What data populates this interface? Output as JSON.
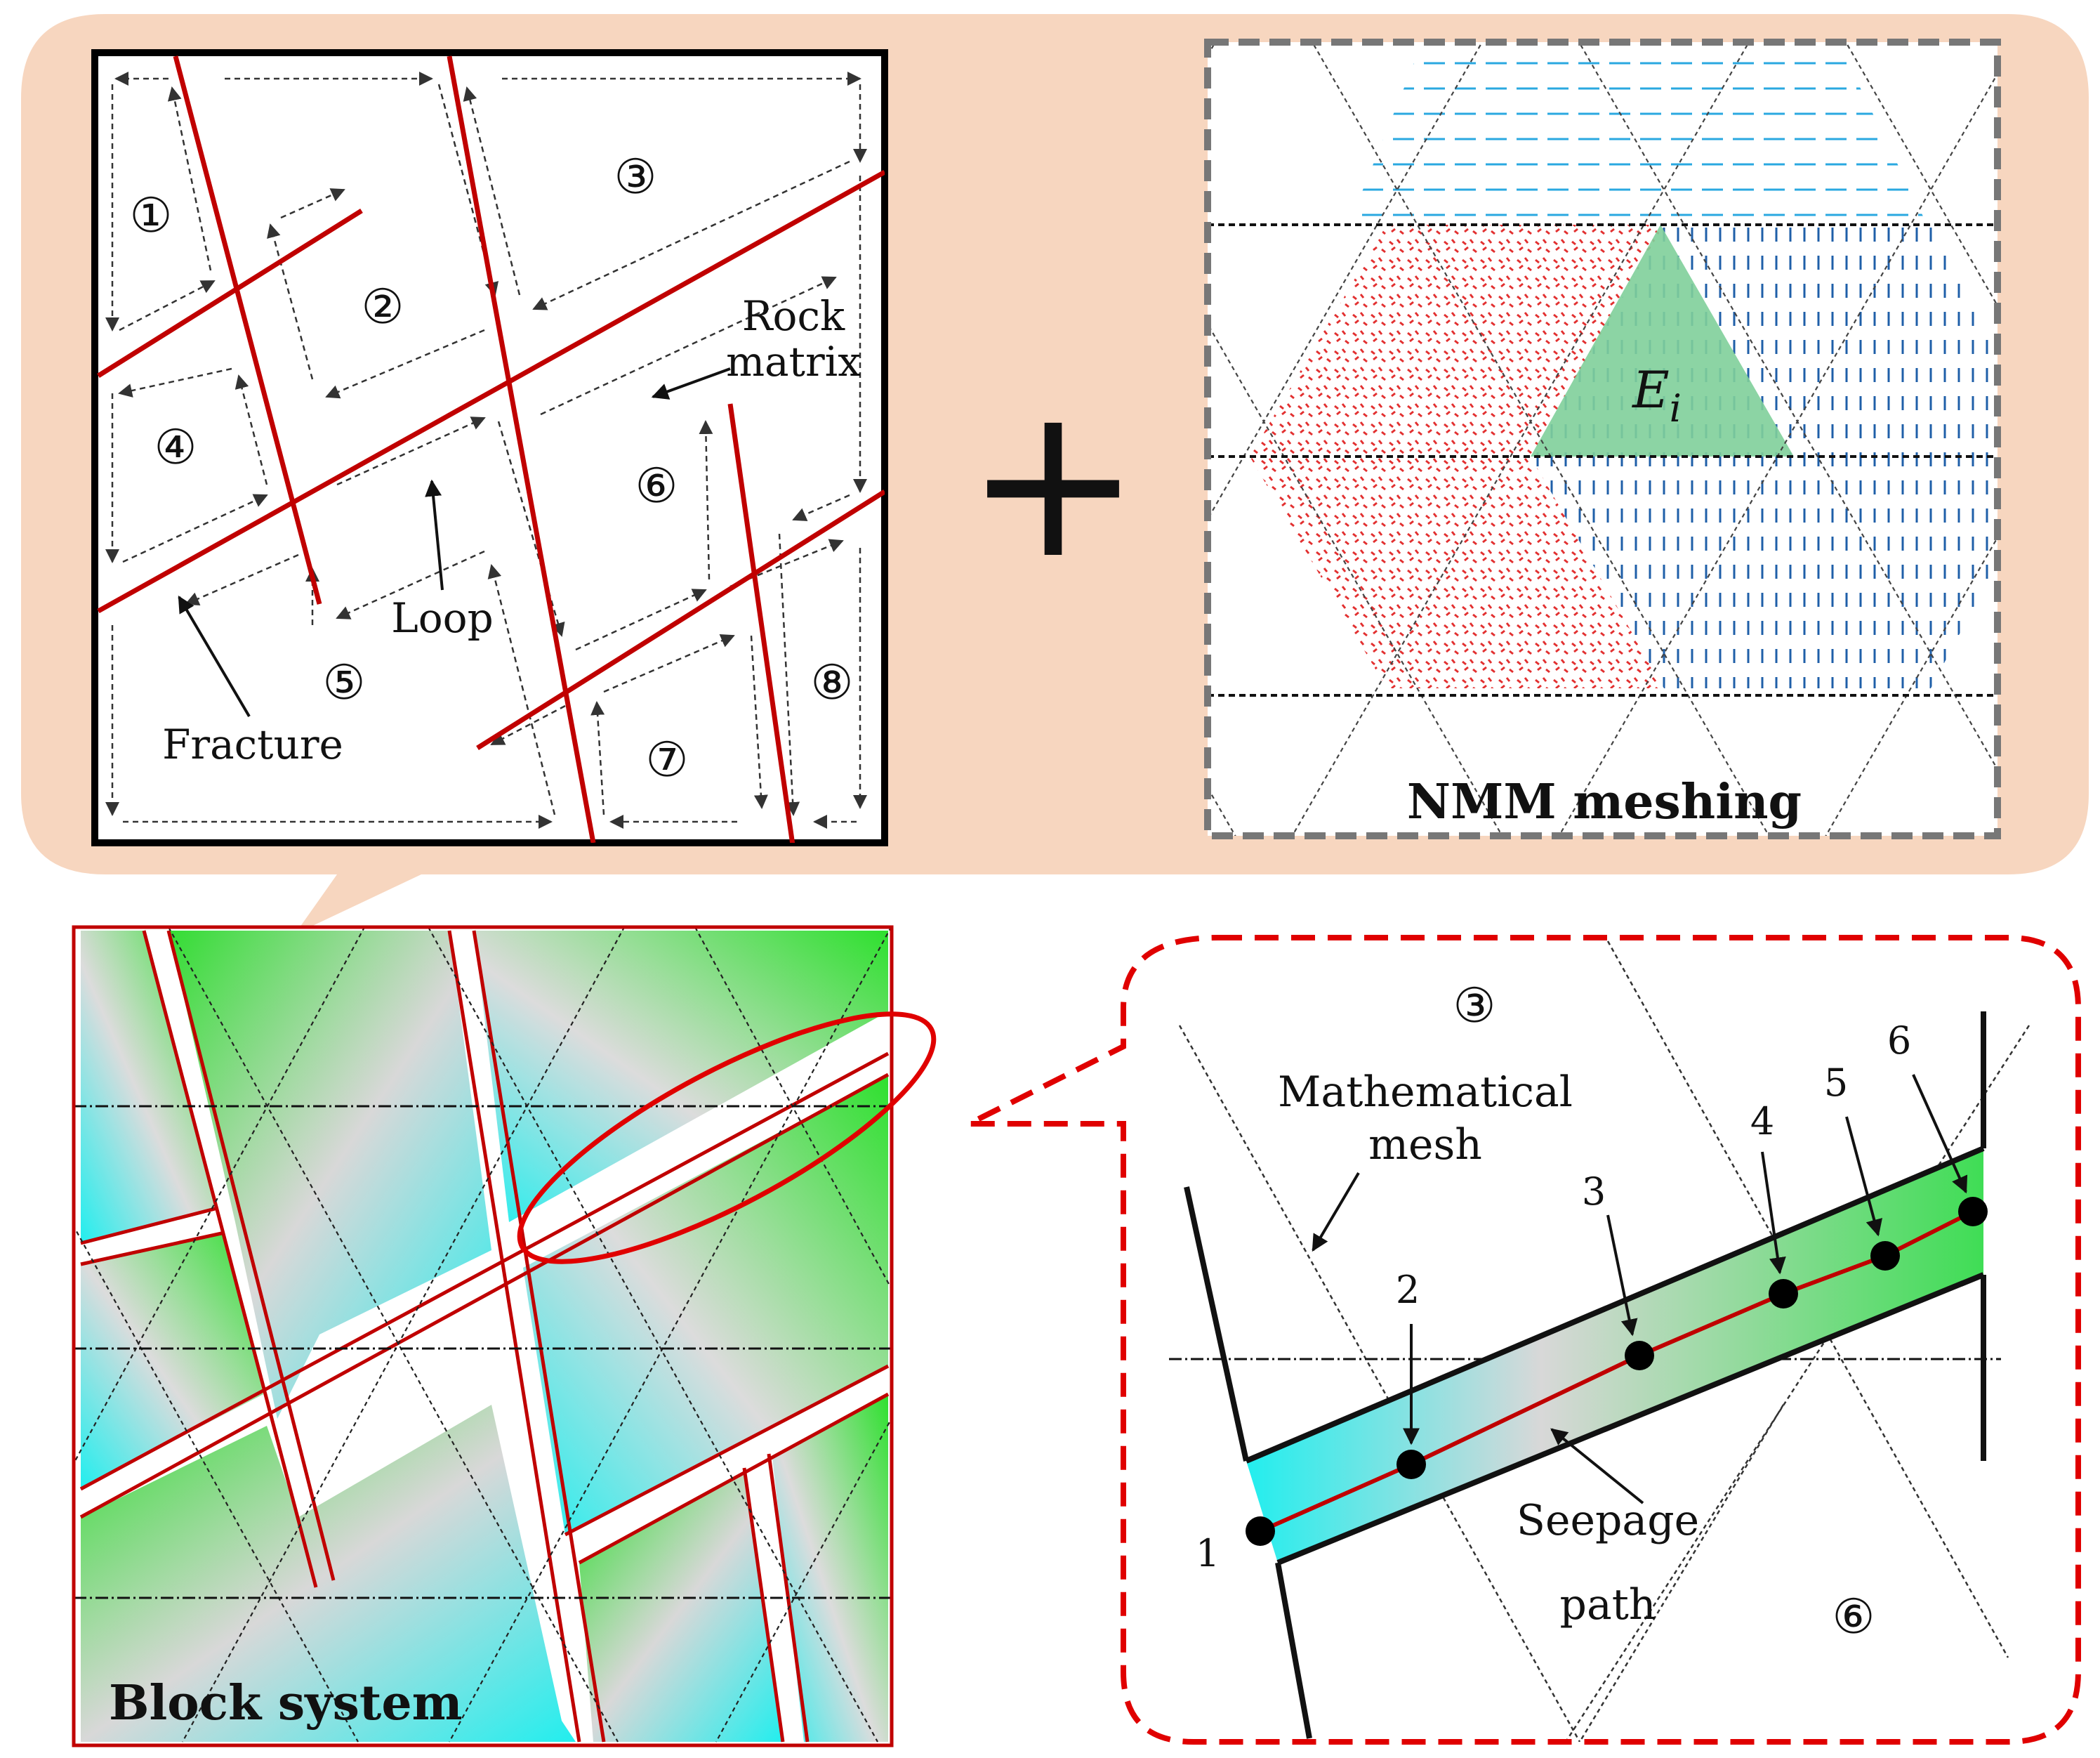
{
  "panel_a": {
    "regions": [
      "①",
      "②",
      "③",
      "④",
      "⑤",
      "⑥",
      "⑦",
      "⑧"
    ],
    "labels": {
      "rock": "Rock",
      "matrix": "matrix",
      "loop": "Loop",
      "fracture": "Fracture"
    }
  },
  "panel_b": {
    "element_label": "E",
    "element_subscript": "i",
    "caption": "NMM meshing"
  },
  "operator": "+",
  "panel_c": {
    "caption": "Block system"
  },
  "panel_d": {
    "region_top": "③",
    "region_bottom": "⑥",
    "mesh_label_line1": "Mathematical",
    "mesh_label_line2": "mesh",
    "seepage_line1": "Seepage",
    "seepage_line2": "path",
    "points": [
      "1",
      "2",
      "3",
      "4",
      "5",
      "6"
    ]
  },
  "colors": {
    "background_bubble": "#f7d6bf",
    "fracture_red": "#c00000",
    "callout_red": "#e00000",
    "element_green": "#7fcf9a",
    "hatch_red": "#e23030",
    "hatch_blue": "#1f5fa8",
    "hatch_cyan": "#2aa8e0"
  }
}
